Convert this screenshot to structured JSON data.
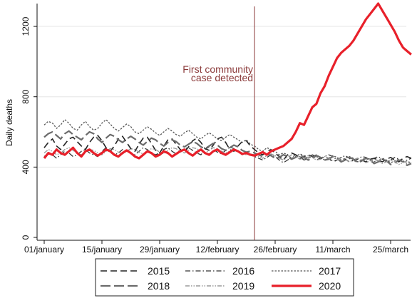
{
  "chart_data": {
    "type": "line",
    "ylabel": "Daily deaths",
    "xlabel": "",
    "ylim": [
      0,
      1330
    ],
    "y_ticks": [
      0,
      400,
      800,
      1200
    ],
    "x_tick_days": [
      0,
      14,
      28,
      42,
      56,
      70,
      84
    ],
    "x_tick_labels": [
      "01/january",
      "15/january",
      "29/january",
      "12/february",
      "26/february",
      "11/march",
      "25/march"
    ],
    "x_range_days": [
      0,
      89
    ],
    "grid": "horizontal",
    "legend_placement": "bottom",
    "annotation": {
      "day": 51,
      "text_lines": [
        "First community",
        "case detected"
      ],
      "color": "#8b3a3a"
    },
    "series": [
      {
        "name": "2015",
        "color": "#222222",
        "dash": "9,5",
        "width": 1.6,
        "values": [
          510,
          540,
          560,
          520,
          500,
          530,
          560,
          570,
          545,
          520,
          500,
          540,
          570,
          580,
          550,
          510,
          490,
          520,
          560,
          575,
          540,
          505,
          490,
          530,
          565,
          570,
          535,
          495,
          480,
          520,
          555,
          560,
          530,
          500,
          485,
          515,
          550,
          565,
          540,
          505,
          495,
          525,
          560,
          570,
          540,
          500,
          490,
          520,
          545,
          550,
          520,
          500,
          480,
          470,
          490,
          500,
          480,
          460,
          440,
          470,
          480,
          470,
          450,
          460,
          470,
          460,
          440,
          450,
          460,
          450,
          430,
          440,
          455,
          445,
          430,
          440,
          450,
          440,
          430,
          445,
          450,
          440,
          430,
          445,
          455,
          440,
          430,
          450,
          460,
          450
        ]
      },
      {
        "name": "2016",
        "color": "#333333",
        "dash": "7,3,1.5,3",
        "width": 1.3,
        "values": [
          460,
          480,
          470,
          450,
          470,
          490,
          480,
          460,
          470,
          490,
          500,
          480,
          470,
          460,
          490,
          510,
          490,
          470,
          480,
          500,
          490,
          480,
          470,
          490,
          510,
          500,
          480,
          470,
          480,
          500,
          510,
          490,
          475,
          485,
          505,
          510,
          495,
          480,
          470,
          500,
          515,
          500,
          485,
          475,
          495,
          515,
          505,
          490,
          470,
          480,
          470,
          460,
          450,
          440,
          455,
          470,
          460,
          440,
          425,
          440,
          455,
          470,
          460,
          440,
          450,
          470,
          460,
          445,
          460,
          470,
          460,
          440,
          455,
          465,
          450,
          430,
          445,
          460,
          455,
          440,
          450,
          460,
          445,
          430,
          440,
          455,
          445,
          430,
          440,
          450
        ]
      },
      {
        "name": "2017",
        "color": "#555555",
        "dash": "2.5,2",
        "width": 1.3,
        "values": [
          640,
          660,
          650,
          620,
          640,
          670,
          650,
          620,
          610,
          640,
          660,
          630,
          610,
          620,
          650,
          670,
          645,
          620,
          605,
          625,
          645,
          630,
          600,
          590,
          610,
          630,
          615,
          595,
          580,
          600,
          620,
          605,
          585,
          575,
          595,
          610,
          590,
          570,
          560,
          580,
          595,
          580,
          560,
          550,
          570,
          585,
          570,
          555,
          540,
          555,
          530,
          520,
          500,
          490,
          510,
          500,
          490,
          470,
          480,
          470,
          450,
          460,
          475,
          465,
          450,
          460,
          470,
          455,
          440,
          450,
          465,
          455,
          440,
          450,
          460,
          450,
          430,
          440,
          455,
          445,
          430,
          440,
          450,
          440,
          425,
          435,
          445,
          435,
          420,
          430
        ]
      },
      {
        "name": "2018",
        "color": "#6b6b6b",
        "dash": "14,5",
        "width": 2.2,
        "values": [
          570,
          590,
          600,
          580,
          560,
          590,
          605,
          585,
          570,
          555,
          580,
          600,
          590,
          560,
          540,
          565,
          585,
          575,
          555,
          540,
          560,
          575,
          560,
          540,
          525,
          545,
          565,
          555,
          535,
          520,
          540,
          555,
          545,
          525,
          515,
          530,
          545,
          535,
          515,
          505,
          520,
          535,
          525,
          505,
          495,
          510,
          525,
          515,
          495,
          485,
          490,
          480,
          470,
          460,
          475,
          465,
          450,
          455,
          470,
          460,
          445,
          455,
          470,
          455,
          440,
          450,
          465,
          455,
          440,
          445,
          460,
          450,
          430,
          440,
          455,
          445,
          425,
          435,
          450,
          440,
          420,
          430,
          445,
          435,
          415,
          425,
          440,
          430,
          410,
          420
        ]
      },
      {
        "name": "2019",
        "color": "#9a9a9a",
        "dash": "6,2,1.5,2,1.5,2",
        "width": 1.4,
        "values": [
          480,
          500,
          490,
          470,
          480,
          500,
          510,
          495,
          480,
          470,
          485,
          500,
          495,
          480,
          470,
          490,
          505,
          500,
          485,
          475,
          490,
          505,
          500,
          485,
          475,
          490,
          505,
          500,
          485,
          475,
          495,
          510,
          505,
          490,
          480,
          495,
          510,
          505,
          490,
          480,
          495,
          510,
          505,
          490,
          480,
          490,
          500,
          495,
          480,
          470,
          475,
          470,
          460,
          450,
          465,
          475,
          465,
          450,
          440,
          455,
          470,
          460,
          445,
          450,
          465,
          455,
          440,
          445,
          460,
          450,
          435,
          440,
          455,
          445,
          430,
          440,
          450,
          440,
          425,
          435,
          445,
          435,
          420,
          430,
          440,
          430,
          415,
          425,
          435,
          425
        ]
      },
      {
        "name": "2020",
        "color": "#e8202a",
        "dash": "",
        "width": 3.2,
        "values": [
          450,
          480,
          470,
          500,
          480,
          470,
          490,
          510,
          480,
          460,
          490,
          500,
          480,
          465,
          480,
          500,
          490,
          470,
          460,
          480,
          495,
          480,
          460,
          450,
          470,
          490,
          480,
          460,
          470,
          490,
          480,
          460,
          475,
          490,
          500,
          480,
          465,
          485,
          500,
          480,
          470,
          490,
          500,
          480,
          470,
          485,
          500,
          490,
          475,
          480,
          470,
          465,
          475,
          485,
          470,
          490,
          500,
          510,
          520,
          540,
          560,
          600,
          650,
          640,
          690,
          740,
          760,
          820,
          860,
          920,
          970,
          1020,
          1050,
          1070,
          1090,
          1120,
          1160,
          1200,
          1240,
          1270,
          1300,
          1330,
          1290,
          1250,
          1210,
          1170,
          1120,
          1080,
          1060,
          1040
        ]
      }
    ]
  }
}
